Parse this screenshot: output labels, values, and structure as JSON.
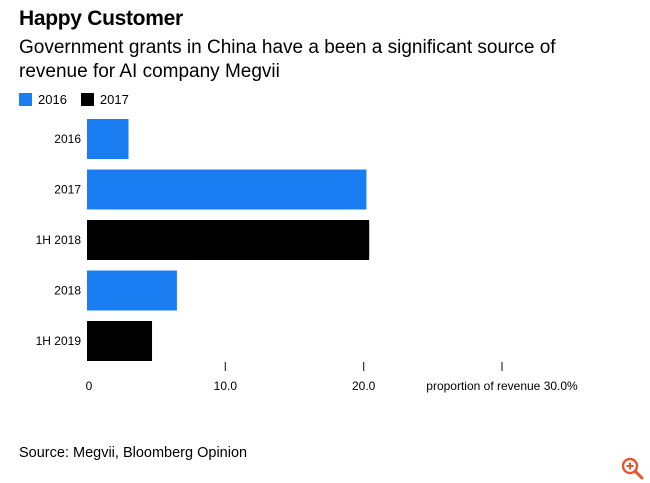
{
  "header": {
    "title": "Happy Customer",
    "subtitle": "Government grants in China have a been a significant source of revenue for AI company Megvii"
  },
  "legend": [
    {
      "label": "2016",
      "color": "#1a7ef2"
    },
    {
      "label": "2017",
      "color": "#000000"
    }
  ],
  "chart_data": {
    "type": "bar",
    "orientation": "horizontal",
    "categories": [
      "2016",
      "2017",
      "1H 2018",
      "2018",
      "1H 2019"
    ],
    "values": [
      3.0,
      20.2,
      20.4,
      6.5,
      4.7
    ],
    "colors": [
      "#1a7ef2",
      "#1a7ef2",
      "#000000",
      "#1a7ef2",
      "#000000"
    ],
    "xlim": [
      0,
      30
    ],
    "x_ticks": [
      {
        "value": 0,
        "label": "0"
      },
      {
        "value": 10,
        "label": "10.0"
      },
      {
        "value": 20,
        "label": "20.0"
      },
      {
        "value": 30,
        "label": "proportion of revenue 30.0%"
      }
    ],
    "xlabel": "proportion of revenue",
    "title": "Happy Customer"
  },
  "footer": {
    "source": "Source: Megvii, Bloomberg Opinion"
  },
  "icons": {
    "zoom": "zoom-in-icon",
    "zoom_color": "#e8542f"
  }
}
